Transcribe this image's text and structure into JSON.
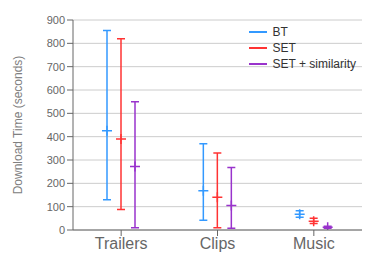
{
  "chart_data": {
    "type": "scatter",
    "categories": [
      "Trailers",
      "Clips",
      "Music"
    ],
    "series": [
      {
        "name": "BT",
        "color": "#3399ff",
        "values": [
          425,
          168,
          68
        ],
        "lower": [
          130,
          42,
          55
        ],
        "upper": [
          855,
          370,
          82
        ]
      },
      {
        "name": "SET",
        "color": "#ff3333",
        "values": [
          390,
          140,
          38
        ],
        "lower": [
          88,
          10,
          28
        ],
        "upper": [
          820,
          330,
          50
        ]
      },
      {
        "name": "SET + similarity",
        "color": "#9933cc",
        "values": [
          272,
          105,
          12
        ],
        "lower": [
          10,
          8,
          8
        ],
        "upper": [
          550,
          268,
          16
        ]
      }
    ],
    "ylabel": "Download Time (seconds)",
    "ylim": [
      0,
      900
    ],
    "yticks": [
      0,
      100,
      200,
      300,
      400,
      500,
      600,
      700,
      800,
      900
    ],
    "grid": true,
    "legend": "upper right",
    "marker": "+"
  }
}
